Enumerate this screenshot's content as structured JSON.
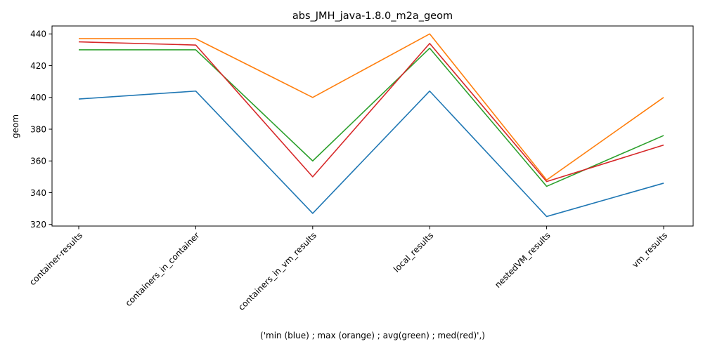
{
  "chart_data": {
    "type": "line",
    "title": "abs_JMH_java-1.8.0_m2a_geom",
    "xlabel": "('min (blue) ; max (orange) ; avg(green) ; med(red)',)",
    "ylabel": "geom",
    "categories": [
      "container-results",
      "containers_in_container",
      "containers_in_vm_results",
      "local_results",
      "nestedVM_results",
      "vm_results"
    ],
    "ylim": [
      319,
      445
    ],
    "yticks": [
      320,
      340,
      360,
      380,
      400,
      420,
      440
    ],
    "grid": false,
    "series": [
      {
        "color": "#1f77b4",
        "values": [
          399,
          404,
          327,
          404,
          325,
          346
        ]
      },
      {
        "color": "#ff7f0e",
        "values": [
          437,
          437,
          400,
          440,
          348,
          400
        ]
      },
      {
        "color": "#2ca02c",
        "values": [
          430,
          430,
          360,
          431,
          344,
          376
        ]
      },
      {
        "color": "#d62728",
        "values": [
          435,
          433,
          350,
          434,
          347,
          370
        ]
      }
    ]
  }
}
